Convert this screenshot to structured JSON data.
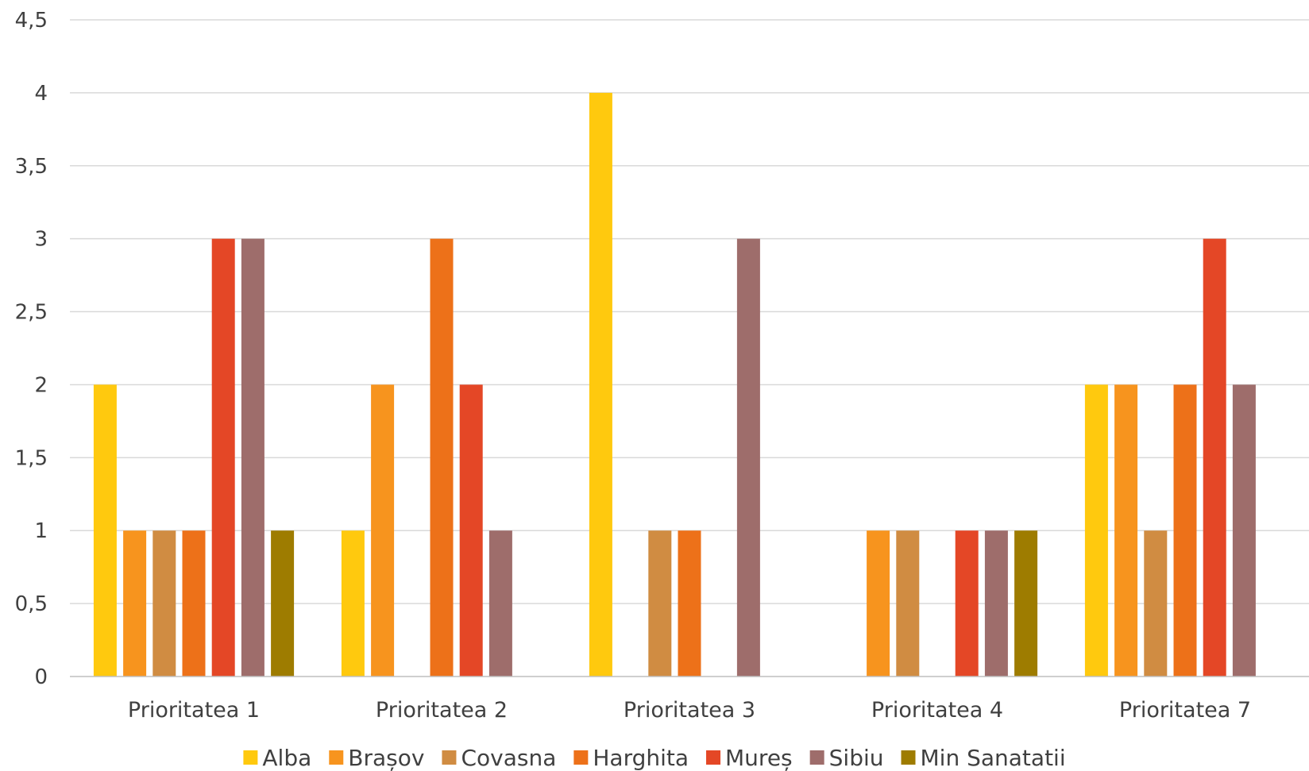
{
  "chart_data": {
    "type": "bar",
    "categories": [
      "Prioritatea 1",
      "Prioritatea 2",
      "Prioritatea 3",
      "Prioritatea 4",
      "Prioritatea 7"
    ],
    "series": [
      {
        "name": "Alba",
        "color": "#FFC90E",
        "values": [
          2,
          1,
          4,
          null,
          2
        ]
      },
      {
        "name": "Brașov",
        "color": "#F7941E",
        "values": [
          1,
          2,
          null,
          1,
          2
        ]
      },
      {
        "name": "Covasna",
        "color": "#D08C42",
        "values": [
          1,
          null,
          1,
          1,
          1
        ]
      },
      {
        "name": "Harghita",
        "color": "#ED7119",
        "values": [
          1,
          3,
          1,
          null,
          2
        ]
      },
      {
        "name": "Mureș",
        "color": "#E44726",
        "values": [
          3,
          2,
          null,
          1,
          3
        ]
      },
      {
        "name": "Sibiu",
        "color": "#9E6D6B",
        "values": [
          3,
          1,
          3,
          1,
          2
        ]
      },
      {
        "name": "Min Sanatatii",
        "color": "#9E7C00",
        "values": [
          1,
          null,
          null,
          1,
          null
        ]
      }
    ],
    "yticks": [
      "0",
      "0,5",
      "1",
      "1,5",
      "2",
      "2,5",
      "3",
      "3,5",
      "4",
      "4,5"
    ],
    "ylim": [
      0,
      4.5
    ],
    "title": "",
    "xlabel": "",
    "ylabel": "",
    "grid": true,
    "legend_position": "bottom"
  }
}
